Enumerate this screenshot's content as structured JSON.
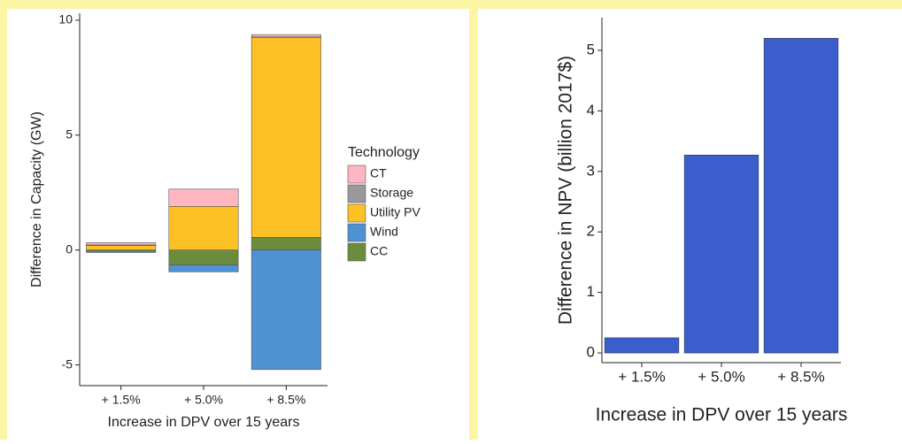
{
  "chart_data": [
    {
      "type": "bar",
      "stacked": true,
      "x_label": "Increase in DPV over 15 years",
      "y_label": "Difference in Capacity (GW)",
      "legend_title": "Technology",
      "legend": "right",
      "categories": [
        "+ 1.5%",
        "+ 5.0%",
        "+ 8.5%"
      ],
      "series": [
        {
          "name": "CT",
          "color": "#ffb6c1",
          "values": [
            0.1,
            0.75,
            0.1
          ]
        },
        {
          "name": "Storage",
          "color": "#999999",
          "values": [
            0.02,
            0,
            0.02
          ]
        },
        {
          "name": "Utility PV",
          "color": "#fdc126",
          "values": [
            0.2,
            1.9,
            8.7
          ]
        },
        {
          "name": "Wind",
          "color": "#4f92d3",
          "values": [
            -0.06,
            -0.3,
            -5.2
          ]
        },
        {
          "name": "CC",
          "color": "#6b8c3c",
          "values": [
            -0.05,
            -0.65,
            0.55
          ]
        }
      ],
      "ylim": [
        -5.9,
        10.3
      ],
      "yticks": [
        -5,
        0,
        5,
        10
      ],
      "grid": false
    },
    {
      "type": "bar",
      "x_label": "Increase in DPV over 15 years",
      "y_label": "Difference in NPV (billion 2017$)",
      "categories": [
        "+ 1.5%",
        "+ 5.0%",
        "+ 8.5%"
      ],
      "values": [
        0.25,
        3.27,
        5.2
      ],
      "color": "#3a5fcd",
      "ylim": [
        -0.16,
        5.54
      ],
      "yticks": [
        0,
        1,
        2,
        3,
        4,
        5
      ],
      "grid": false
    }
  ]
}
